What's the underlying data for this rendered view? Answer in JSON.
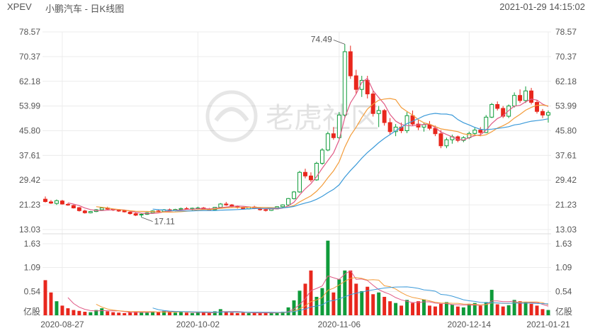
{
  "header": {
    "symbol": "XPEV",
    "name": "小鹏汽车 - 日K线图",
    "timestamp": "2021-01-29 14:15:02"
  },
  "colors": {
    "up": "#e8271d",
    "down": "#0f9b3a",
    "ma5": "#e05a86",
    "ma10": "#f39c3a",
    "ma20": "#3b9ad9",
    "grid": "#ececec",
    "text": "#555555"
  },
  "watermark": {
    "text": "老虎社区",
    "icon": "tiger-logo-icon"
  },
  "chart_data": [
    {
      "type": "candlestick",
      "yticks": [
        "78.57",
        "70.37",
        "62.18",
        "53.99",
        "45.80",
        "37.61",
        "29.42",
        "21.23",
        "13.03"
      ],
      "ylim": [
        13.03,
        78.57
      ],
      "xticks": [
        "2020-08-27",
        "2020-10-02",
        "2020-11-06",
        "2020-12-14",
        "2021-01-21"
      ],
      "annotations": [
        {
          "label": "74.49",
          "index": 53
        },
        {
          "label": "17.11",
          "index": 17
        }
      ],
      "ohlc": [
        [
          23.1,
          24.0,
          22.0,
          22.3
        ],
        [
          22.2,
          22.8,
          21.5,
          21.8
        ],
        [
          21.7,
          23.0,
          21.2,
          22.6
        ],
        [
          22.5,
          22.9,
          21.3,
          21.5
        ],
        [
          21.4,
          21.8,
          20.9,
          21.2
        ],
        [
          21.0,
          21.3,
          20.0,
          20.2
        ],
        [
          20.3,
          20.5,
          19.0,
          19.3
        ],
        [
          19.2,
          19.6,
          18.3,
          18.6
        ],
        [
          18.6,
          19.2,
          18.4,
          19.0
        ],
        [
          19.0,
          19.8,
          18.8,
          19.6
        ],
        [
          19.6,
          20.4,
          19.4,
          20.2
        ],
        [
          20.2,
          20.6,
          19.6,
          19.8
        ],
        [
          19.8,
          20.0,
          19.2,
          19.5
        ],
        [
          19.4,
          19.7,
          18.9,
          19.3
        ],
        [
          19.3,
          19.6,
          18.7,
          18.9
        ],
        [
          18.8,
          19.1,
          18.0,
          18.3
        ],
        [
          18.3,
          18.6,
          17.5,
          17.8
        ],
        [
          17.9,
          18.3,
          17.11,
          18.1
        ],
        [
          18.1,
          18.8,
          17.9,
          18.6
        ],
        [
          18.6,
          19.4,
          18.4,
          19.2
        ],
        [
          19.2,
          19.6,
          18.8,
          19.0
        ],
        [
          19.0,
          19.8,
          18.8,
          19.6
        ],
        [
          19.6,
          20.0,
          19.0,
          19.3
        ],
        [
          19.3,
          19.9,
          19.1,
          19.7
        ],
        [
          19.7,
          20.3,
          19.4,
          20.0
        ],
        [
          20.0,
          20.5,
          19.6,
          19.8
        ],
        [
          19.8,
          20.3,
          19.5,
          20.1
        ],
        [
          20.1,
          20.6,
          19.8,
          20.2
        ],
        [
          20.2,
          20.5,
          19.6,
          19.8
        ],
        [
          19.8,
          20.2,
          19.4,
          19.6
        ],
        [
          19.6,
          20.5,
          19.5,
          20.4
        ],
        [
          20.4,
          21.8,
          20.2,
          21.5
        ],
        [
          21.5,
          22.2,
          20.9,
          21.2
        ],
        [
          21.2,
          21.5,
          20.4,
          20.7
        ],
        [
          20.7,
          21.0,
          20.0,
          20.4
        ],
        [
          20.4,
          20.6,
          19.7,
          19.9
        ],
        [
          19.9,
          20.6,
          19.7,
          20.5
        ],
        [
          20.5,
          20.9,
          19.8,
          20.0
        ],
        [
          20.0,
          20.3,
          19.3,
          19.6
        ],
        [
          19.6,
          19.9,
          19.0,
          19.4
        ],
        [
          19.4,
          20.0,
          19.2,
          19.9
        ],
        [
          19.9,
          20.8,
          19.7,
          20.6
        ],
        [
          20.6,
          21.4,
          20.3,
          21.2
        ],
        [
          21.2,
          23.5,
          21.0,
          23.3
        ],
        [
          23.3,
          25.8,
          23.0,
          25.5
        ],
        [
          25.5,
          32.5,
          25.2,
          32.0
        ],
        [
          32.0,
          33.2,
          30.0,
          30.8
        ],
        [
          30.8,
          32.0,
          28.8,
          29.5
        ],
        [
          29.5,
          35.5,
          29.2,
          35.0
        ],
        [
          35.0,
          40.0,
          34.5,
          39.4
        ],
        [
          39.4,
          45.5,
          39.0,
          44.8
        ],
        [
          44.8,
          47.0,
          42.8,
          43.5
        ],
        [
          43.5,
          52.0,
          43.0,
          51.0
        ],
        [
          51.0,
          74.49,
          50.0,
          72.0
        ],
        [
          72.0,
          74.0,
          63.0,
          64.0
        ],
        [
          64.0,
          66.0,
          58.0,
          59.5
        ],
        [
          59.5,
          64.0,
          57.0,
          62.5
        ],
        [
          62.5,
          64.0,
          56.5,
          58.0
        ],
        [
          58.0,
          59.0,
          50.5,
          51.5
        ],
        [
          51.5,
          54.0,
          47.0,
          52.5
        ],
        [
          52.5,
          53.0,
          47.5,
          48.5
        ],
        [
          48.5,
          50.0,
          44.5,
          45.5
        ],
        [
          45.5,
          48.0,
          44.0,
          47.0
        ],
        [
          47.0,
          48.5,
          45.0,
          45.8
        ],
        [
          45.8,
          52.0,
          45.0,
          50.8
        ],
        [
          50.8,
          52.5,
          47.5,
          48.0
        ],
        [
          48.0,
          49.5,
          46.0,
          47.0
        ],
        [
          47.0,
          48.5,
          45.5,
          47.8
        ],
        [
          47.8,
          49.0,
          46.0,
          46.6
        ],
        [
          46.6,
          47.5,
          44.0,
          44.8
        ],
        [
          44.8,
          46.0,
          40.0,
          40.8
        ],
        [
          40.8,
          43.5,
          40.0,
          42.8
        ],
        [
          42.8,
          44.5,
          41.5,
          43.8
        ],
        [
          43.8,
          44.2,
          42.0,
          42.6
        ],
        [
          42.6,
          44.0,
          42.0,
          43.5
        ],
        [
          43.5,
          45.5,
          43.0,
          44.9
        ],
        [
          44.9,
          47.0,
          44.0,
          46.0
        ],
        [
          46.0,
          47.0,
          44.0,
          45.2
        ],
        [
          45.2,
          51.0,
          45.0,
          50.3
        ],
        [
          50.3,
          55.0,
          50.0,
          54.5
        ],
        [
          54.5,
          55.5,
          52.5,
          53.2
        ],
        [
          53.2,
          54.0,
          50.0,
          50.6
        ],
        [
          50.6,
          54.5,
          50.0,
          54.0
        ],
        [
          54.0,
          58.5,
          53.5,
          57.5
        ],
        [
          57.5,
          59.5,
          55.0,
          55.8
        ],
        [
          55.8,
          60.5,
          55.0,
          59.0
        ],
        [
          59.0,
          60.0,
          54.5,
          55.2
        ],
        [
          55.2,
          56.0,
          51.5,
          52.2
        ],
        [
          52.2,
          53.0,
          50.0,
          51.0
        ],
        [
          51.0,
          52.5,
          48.5,
          51.8
        ]
      ],
      "ma_series": [
        {
          "name": "MA5",
          "period": 5
        },
        {
          "name": "MA10",
          "period": 10
        },
        {
          "name": "MA20",
          "period": 20
        }
      ]
    },
    {
      "type": "bar",
      "unit": "亿股",
      "yticks": [
        "1.63",
        "1.09",
        "0.54"
      ],
      "ylim": [
        0,
        1.63
      ],
      "volume": [
        0.8,
        0.52,
        0.32,
        0.22,
        0.16,
        0.12,
        0.1,
        0.08,
        0.07,
        0.12,
        0.16,
        0.09,
        0.07,
        0.06,
        0.05,
        0.07,
        0.08,
        0.07,
        0.06,
        0.09,
        0.08,
        0.1,
        0.07,
        0.06,
        0.09,
        0.06,
        0.05,
        0.06,
        0.06,
        0.05,
        0.09,
        0.14,
        0.08,
        0.06,
        0.05,
        0.06,
        0.05,
        0.06,
        0.05,
        0.06,
        0.05,
        0.06,
        0.08,
        0.18,
        0.34,
        0.56,
        0.72,
        1.02,
        0.42,
        0.62,
        1.7,
        0.52,
        0.82,
        1.02,
        1.02,
        0.72,
        0.55,
        0.65,
        0.48,
        0.52,
        0.42,
        0.32,
        0.28,
        0.22,
        0.35,
        0.28,
        0.32,
        0.36,
        0.22,
        0.2,
        0.26,
        0.3,
        0.24,
        0.2,
        0.18,
        0.26,
        0.28,
        0.22,
        0.3,
        0.58,
        0.25,
        0.2,
        0.23,
        0.35,
        0.32,
        0.3,
        0.26,
        0.22,
        0.14,
        0.12
      ]
    }
  ]
}
